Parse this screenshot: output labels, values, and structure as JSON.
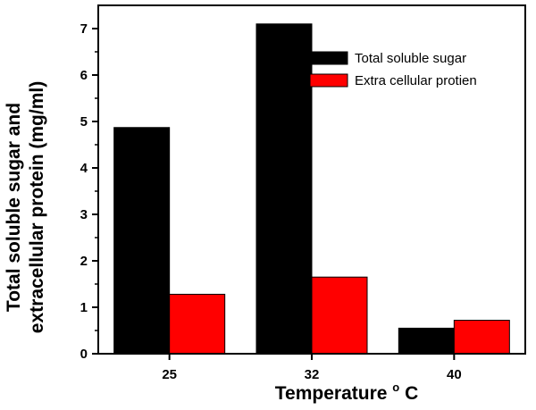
{
  "chart_data": {
    "type": "bar",
    "categories": [
      "25",
      "32",
      "40"
    ],
    "series": [
      {
        "name": "Total soluble sugar",
        "values": [
          4.87,
          7.1,
          0.55
        ],
        "color": "#000000"
      },
      {
        "name": "Extra cellular protien",
        "values": [
          1.28,
          1.65,
          0.72
        ],
        "color": "#ff0000"
      }
    ],
    "xlabel": "Temperature",
    "xlabel_unit": "C",
    "xlabel_superscript": "o",
    "ylabel_line1": "Total soluble sugar and",
    "ylabel_line2": "extracellular protein (mg/ml)",
    "ylim": [
      0,
      7.5
    ],
    "yticks": [
      0,
      1,
      2,
      3,
      4,
      5,
      6,
      7
    ],
    "grid": false,
    "legend_position": "top-right"
  }
}
